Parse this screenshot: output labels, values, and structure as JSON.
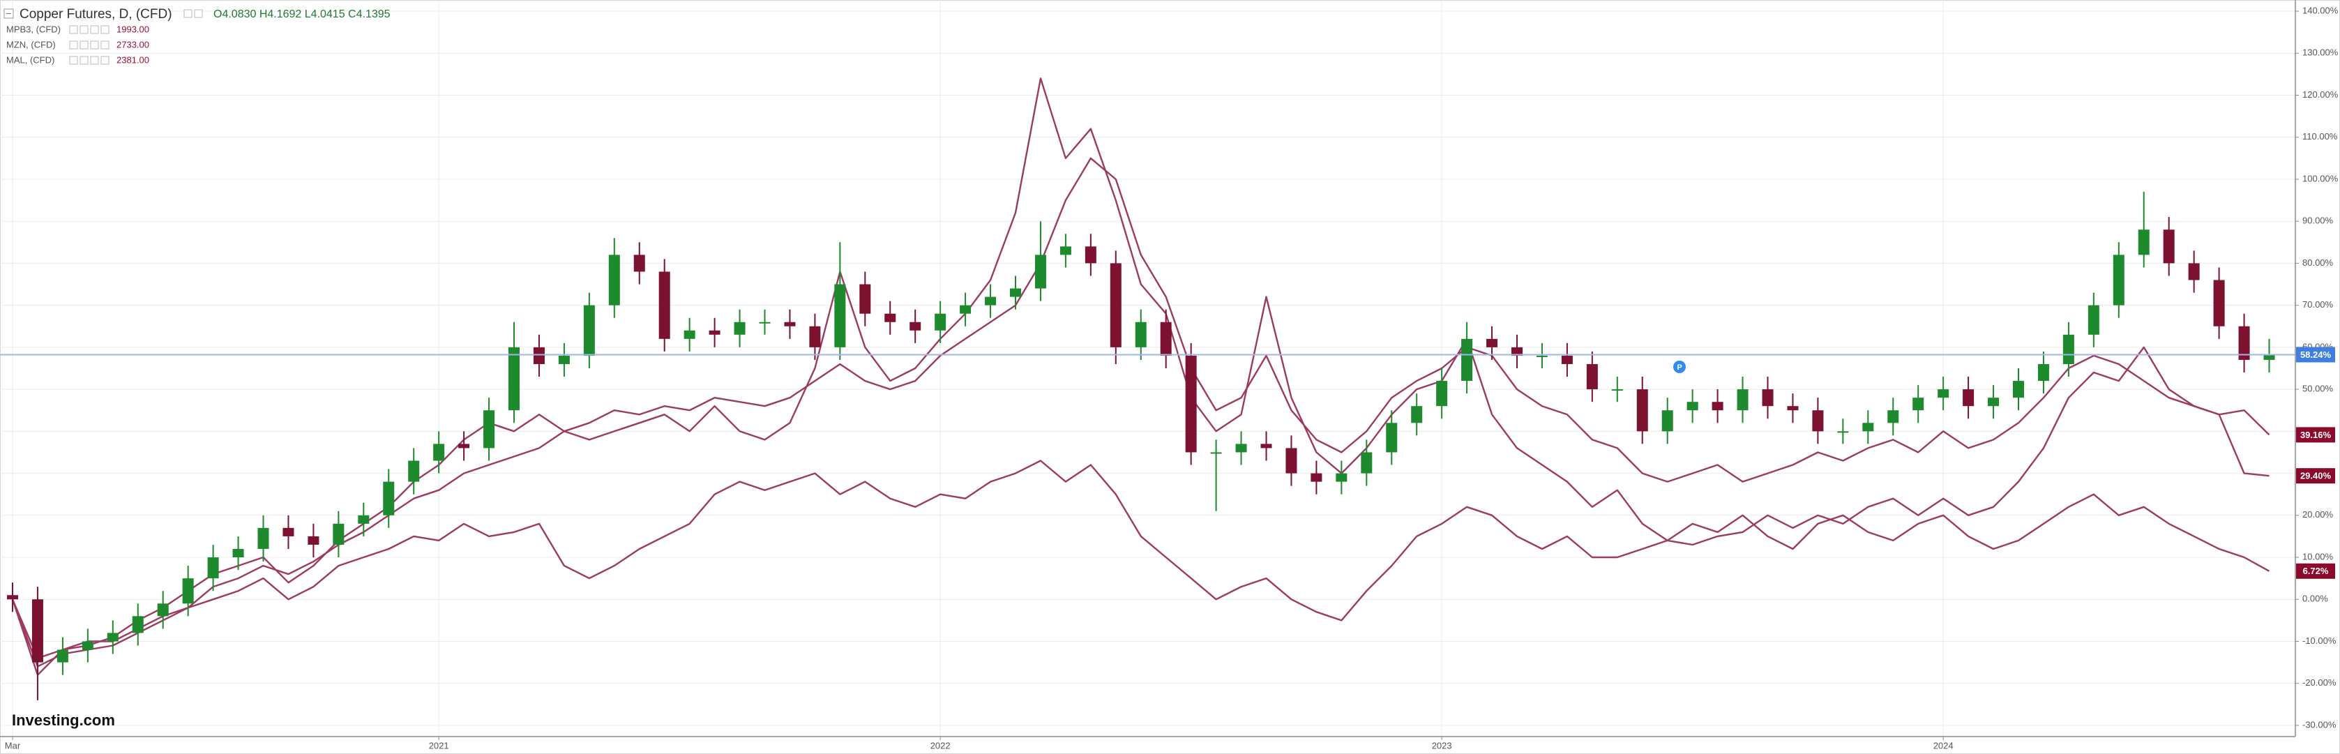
{
  "chart_data": {
    "type": "candlestick",
    "title": "Copper Futures, D, (CFD)",
    "ohlc_text": "O4.0830 H4.1692 L4.0415 C4.1395",
    "watermark": "Investing.com",
    "marker": "P",
    "categories": [
      "Mar",
      null,
      null,
      null,
      null,
      null,
      null,
      null,
      null,
      null,
      null,
      null,
      null,
      null,
      null,
      null,
      null,
      "2021",
      null,
      null,
      null,
      null,
      null,
      null,
      null,
      null,
      null,
      null,
      null,
      null,
      null,
      null,
      null,
      null,
      null,
      null,
      null,
      "2022",
      null,
      null,
      null,
      null,
      null,
      null,
      null,
      null,
      null,
      null,
      null,
      null,
      null,
      null,
      null,
      null,
      null,
      null,
      null,
      "2023",
      null,
      null,
      null,
      null,
      null,
      null,
      null,
      null,
      null,
      null,
      null,
      null,
      null,
      null,
      null,
      null,
      null,
      null,
      null,
      "2024",
      null,
      null,
      null,
      null,
      null,
      null,
      null,
      null,
      null,
      null,
      null,
      null,
      null
    ],
    "open": [
      1,
      0,
      -15,
      -12,
      -10,
      -8,
      -4,
      -1,
      5,
      10,
      12,
      17,
      15,
      13,
      18,
      20,
      28,
      33,
      37,
      36,
      45,
      60,
      56,
      58,
      70,
      82,
      78,
      62,
      64,
      63,
      66,
      66,
      65,
      60,
      75,
      68,
      66,
      64,
      68,
      70,
      72,
      74,
      82,
      84,
      80,
      60,
      66,
      58,
      35,
      35,
      37,
      36,
      30,
      28,
      30,
      35,
      42,
      46,
      52,
      62,
      60,
      58,
      58,
      56,
      50,
      50,
      40,
      45,
      47,
      45,
      50,
      46,
      45,
      40,
      40,
      42,
      45,
      48,
      50,
      46,
      48,
      52,
      56,
      63,
      70,
      82,
      88,
      80,
      76,
      65,
      57
    ],
    "high": [
      4,
      3,
      -9,
      -7,
      -5,
      -1,
      2,
      8,
      13,
      15,
      20,
      20,
      18,
      21,
      23,
      31,
      36,
      40,
      40,
      48,
      66,
      63,
      61,
      73,
      86,
      85,
      81,
      67,
      67,
      69,
      69,
      69,
      68,
      85,
      78,
      71,
      69,
      71,
      73,
      75,
      77,
      90,
      87,
      87,
      83,
      69,
      69,
      61,
      38,
      40,
      40,
      39,
      33,
      33,
      38,
      45,
      49,
      55,
      66,
      65,
      63,
      61,
      61,
      59,
      53,
      53,
      48,
      50,
      50,
      53,
      53,
      49,
      48,
      43,
      45,
      48,
      51,
      53,
      53,
      51,
      55,
      59,
      66,
      73,
      85,
      97,
      91,
      83,
      79,
      68,
      62
    ],
    "low": [
      -3,
      -24,
      -18,
      -15,
      -13,
      -11,
      -7,
      -4,
      2,
      7,
      9,
      12,
      10,
      10,
      15,
      17,
      25,
      30,
      33,
      33,
      42,
      53,
      53,
      55,
      67,
      75,
      59,
      59,
      60,
      60,
      63,
      62,
      57,
      57,
      65,
      63,
      61,
      61,
      65,
      67,
      69,
      71,
      79,
      77,
      56,
      57,
      55,
      32,
      21,
      32,
      33,
      27,
      25,
      25,
      27,
      32,
      39,
      43,
      49,
      57,
      55,
      55,
      53,
      47,
      47,
      37,
      37,
      42,
      42,
      42,
      43,
      42,
      37,
      37,
      37,
      39,
      42,
      45,
      43,
      43,
      45,
      49,
      53,
      60,
      67,
      79,
      77,
      73,
      62,
      54,
      54
    ],
    "close": [
      0,
      -15,
      -12,
      -10,
      -8,
      -4,
      -1,
      5,
      10,
      12,
      17,
      15,
      13,
      18,
      20,
      28,
      33,
      37,
      36,
      45,
      60,
      56,
      58,
      70,
      82,
      78,
      62,
      64,
      63,
      66,
      66,
      65,
      60,
      75,
      68,
      66,
      64,
      68,
      70,
      72,
      74,
      82,
      84,
      80,
      60,
      66,
      58,
      35,
      35,
      37,
      36,
      30,
      28,
      30,
      35,
      42,
      46,
      52,
      62,
      60,
      58,
      58,
      56,
      50,
      50,
      40,
      45,
      47,
      45,
      50,
      46,
      45,
      40,
      40,
      42,
      45,
      48,
      50,
      46,
      48,
      52,
      56,
      63,
      70,
      82,
      88,
      80,
      76,
      65,
      57,
      58.24
    ],
    "last_label": "58.24%",
    "up_color": "#1e8a2e",
    "down_color": "#7d1230",
    "price_line_color": "#9fb4ee",
    "series": [
      {
        "name": "MPB3, (CFD)",
        "legend_value": "1993.00",
        "type": "line",
        "color": "#9b3b62",
        "last_label": "29.40%",
        "values": [
          0,
          -18,
          -12,
          -11,
          -9,
          -5,
          -2,
          2,
          6,
          8,
          10,
          4,
          8,
          14,
          18,
          22,
          28,
          32,
          38,
          42,
          40,
          44,
          40,
          38,
          40,
          42,
          44,
          40,
          46,
          40,
          38,
          42,
          55,
          78,
          60,
          52,
          55,
          62,
          68,
          76,
          92,
          124,
          105,
          112,
          95,
          75,
          68,
          48,
          40,
          44,
          72,
          48,
          35,
          30,
          36,
          44,
          50,
          52,
          62,
          44,
          36,
          32,
          28,
          22,
          26,
          18,
          14,
          13,
          15,
          16,
          20,
          17,
          20,
          18,
          22,
          24,
          20,
          24,
          20,
          22,
          28,
          36,
          48,
          54,
          52,
          60,
          50,
          46,
          44,
          30,
          29.4
        ]
      },
      {
        "name": "MZN, (CFD)",
        "legend_value": "2733.00",
        "type": "line",
        "color": "#9b3b62",
        "last_label": "39.16%",
        "values": [
          0,
          -16,
          -13,
          -12,
          -11,
          -8,
          -5,
          -2,
          3,
          5,
          8,
          6,
          9,
          13,
          16,
          20,
          24,
          26,
          30,
          32,
          34,
          36,
          40,
          42,
          45,
          44,
          46,
          45,
          48,
          47,
          46,
          48,
          52,
          56,
          52,
          50,
          52,
          58,
          62,
          66,
          70,
          80,
          95,
          105,
          100,
          82,
          72,
          55,
          45,
          48,
          58,
          45,
          38,
          35,
          40,
          48,
          52,
          55,
          60,
          58,
          50,
          46,
          44,
          38,
          36,
          30,
          28,
          30,
          32,
          28,
          30,
          32,
          35,
          33,
          36,
          38,
          35,
          40,
          36,
          38,
          42,
          48,
          55,
          58,
          56,
          52,
          48,
          46,
          44,
          45,
          39.16
        ]
      },
      {
        "name": "MAL, (CFD)",
        "legend_value": "2381.00",
        "type": "line",
        "color": "#9b3b62",
        "last_label": "6.72%",
        "values": [
          0,
          -14,
          -12,
          -10,
          -10,
          -7,
          -4,
          -2,
          0,
          2,
          5,
          0,
          3,
          8,
          10,
          12,
          15,
          14,
          18,
          15,
          16,
          18,
          8,
          5,
          8,
          12,
          15,
          18,
          25,
          28,
          26,
          28,
          30,
          25,
          28,
          24,
          22,
          25,
          24,
          28,
          30,
          33,
          28,
          32,
          25,
          15,
          10,
          5,
          0,
          3,
          5,
          0,
          -3,
          -5,
          2,
          8,
          15,
          18,
          22,
          20,
          15,
          12,
          15,
          10,
          10,
          12,
          14,
          18,
          16,
          20,
          15,
          12,
          18,
          20,
          16,
          14,
          18,
          20,
          15,
          12,
          14,
          18,
          22,
          25,
          20,
          22,
          18,
          15,
          12,
          10,
          6.72
        ]
      }
    ],
    "ylim": [
      -32,
      142
    ],
    "yticks": [
      {
        "value": 140,
        "label": "140.00%"
      },
      {
        "value": 130,
        "label": "130.00%"
      },
      {
        "value": 120,
        "label": "120.00%"
      },
      {
        "value": 110,
        "label": "110.00%"
      },
      {
        "value": 100,
        "label": "100.00%"
      },
      {
        "value": 90,
        "label": "90.00%"
      },
      {
        "value": 80,
        "label": "80.00%"
      },
      {
        "value": 70,
        "label": "70.00%"
      },
      {
        "value": 60,
        "label": "60.00%"
      },
      {
        "value": 50,
        "label": "50.00%"
      },
      {
        "value": 40,
        "label": "40.00%"
      },
      {
        "value": 30,
        "label": "30.00%"
      },
      {
        "value": 20,
        "label": "20.00%"
      },
      {
        "value": 10,
        "label": "10.00%"
      },
      {
        "value": 0,
        "label": "0.00%"
      },
      {
        "value": -10,
        "label": "-10.00%"
      },
      {
        "value": -20,
        "label": "-20.00%"
      },
      {
        "value": -30,
        "label": "-30.00%"
      }
    ],
    "grid": true
  }
}
